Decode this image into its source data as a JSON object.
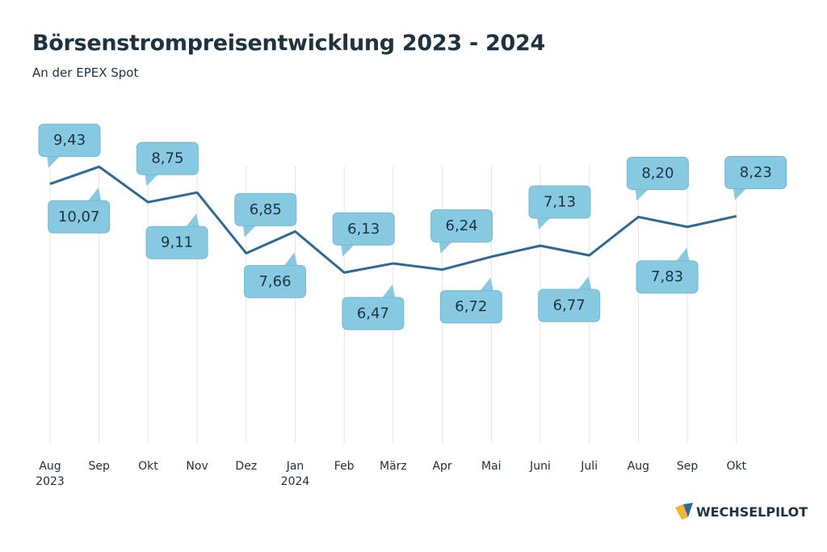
{
  "chart_data": {
    "type": "line",
    "title": "Börsenstrompreisentwicklung 2023 - 2024",
    "subtitle": "An der EPEX Spot",
    "brand": "WECHSELPILOT",
    "categories": [
      "Aug\n2023",
      "Sep",
      "Okt",
      "Nov",
      "Dez",
      "Jan\n2024",
      "Feb",
      "März",
      "Apr",
      "Mai",
      "Juni",
      "Juli",
      "Aug",
      "Sep",
      "Okt"
    ],
    "values": [
      9.43,
      10.07,
      8.75,
      9.11,
      6.85,
      7.66,
      6.13,
      6.47,
      6.24,
      6.72,
      7.13,
      6.77,
      8.2,
      7.83,
      8.23
    ],
    "value_labels": [
      "9,43",
      "10,07",
      "8,75",
      "9,11",
      "6,85",
      "7,66",
      "6,13",
      "6,47",
      "6,24",
      "6,72",
      "7,13",
      "6,77",
      "8,20",
      "7,83",
      "8,23"
    ],
    "ylim": [
      0,
      10.5
    ],
    "color": "#2f6a97",
    "label_color": "#86c9e1",
    "grid": true
  }
}
